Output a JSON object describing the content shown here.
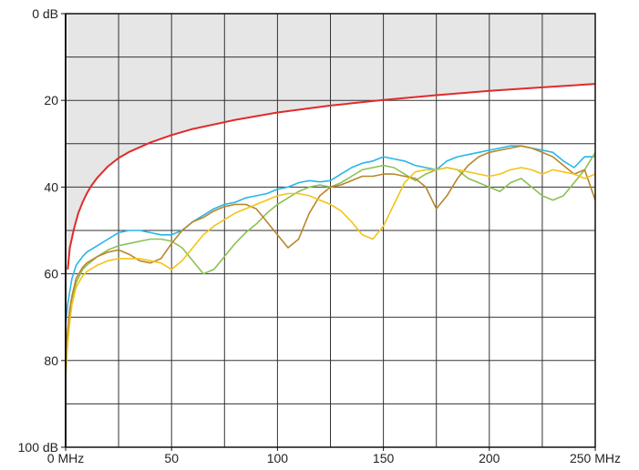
{
  "chart_data": {
    "type": "line",
    "title": "",
    "xlabel": "",
    "ylabel": "",
    "xlim": [
      0,
      250
    ],
    "ylim": [
      0,
      100
    ],
    "y_inverted": true,
    "grid": true,
    "legend": "none",
    "x_ticks": [
      {
        "value": 0,
        "label": "0 MHz"
      },
      {
        "value": 50,
        "label": "50"
      },
      {
        "value": 100,
        "label": "100"
      },
      {
        "value": 150,
        "label": "150"
      },
      {
        "value": 200,
        "label": "200"
      },
      {
        "value": 250,
        "label": "250 MHz"
      }
    ],
    "y_ticks": [
      {
        "value": 0,
        "label": "0 dB"
      },
      {
        "value": 20,
        "label": "20"
      },
      {
        "value": 40,
        "label": "40"
      },
      {
        "value": 60,
        "label": "60"
      },
      {
        "value": 80,
        "label": "80"
      },
      {
        "value": 100,
        "label": "100 dB"
      }
    ],
    "limit_region_color": "#e6e6e6",
    "series": [
      {
        "color": "#e02b2b",
        "role": "limit",
        "x": [
          1,
          2,
          4,
          6,
          8,
          10,
          12,
          15,
          20,
          25,
          30,
          40,
          50,
          60,
          80,
          100,
          125,
          150,
          175,
          200,
          225,
          250
        ],
        "y": [
          59,
          54,
          49.5,
          46,
          43.5,
          41.5,
          39.8,
          37.8,
          35.2,
          33.3,
          31.9,
          29.7,
          28,
          26.6,
          24.5,
          22.8,
          21.2,
          19.9,
          18.8,
          17.8,
          17,
          16.2
        ]
      },
      {
        "color": "#29b5e8",
        "x": [
          0,
          1,
          2,
          3,
          5,
          8,
          10,
          15,
          20,
          25,
          30,
          35,
          40,
          45,
          50,
          55,
          60,
          65,
          70,
          75,
          80,
          85,
          90,
          95,
          100,
          105,
          110,
          115,
          120,
          125,
          130,
          135,
          140,
          145,
          150,
          155,
          160,
          165,
          170,
          175,
          180,
          185,
          190,
          195,
          200,
          205,
          210,
          215,
          220,
          225,
          230,
          235,
          240,
          245,
          250
        ],
        "y": [
          72,
          67,
          64,
          61,
          58,
          56,
          55,
          53.5,
          52,
          50.5,
          50,
          50,
          50.5,
          51,
          51,
          50,
          48,
          46.5,
          45,
          44,
          43.5,
          42.5,
          42,
          41.5,
          40.5,
          40,
          39,
          38.5,
          38.8,
          38.5,
          37,
          35.5,
          34.5,
          34,
          33,
          33.5,
          34,
          35,
          35.5,
          36,
          34,
          33,
          32.5,
          32,
          31.5,
          31,
          30.5,
          30.5,
          31,
          31.5,
          32,
          34,
          35.5,
          33,
          33
        ]
      },
      {
        "color": "#8cc152",
        "x": [
          0,
          1,
          2,
          3,
          5,
          8,
          10,
          15,
          20,
          25,
          30,
          35,
          40,
          45,
          50,
          55,
          60,
          65,
          70,
          75,
          80,
          85,
          90,
          95,
          100,
          105,
          110,
          115,
          120,
          125,
          130,
          135,
          140,
          145,
          150,
          155,
          160,
          165,
          170,
          175,
          180,
          185,
          190,
          195,
          200,
          205,
          210,
          215,
          220,
          225,
          230,
          235,
          240,
          245,
          250
        ],
        "y": [
          82,
          74,
          69,
          66,
          62,
          59,
          58,
          56,
          54.5,
          53.5,
          53,
          52.5,
          52,
          52,
          52.5,
          54,
          57,
          60,
          59,
          56,
          53,
          50.5,
          48.5,
          46,
          44,
          42.5,
          41,
          40,
          39.5,
          40,
          39,
          37.5,
          36,
          35.5,
          35,
          35.5,
          37,
          38.5,
          37,
          36,
          35.5,
          36,
          38,
          39,
          40,
          41,
          39,
          38,
          40,
          42,
          43,
          42,
          39,
          36,
          32
        ]
      },
      {
        "color": "#b8862b",
        "x": [
          0,
          1,
          2,
          3,
          5,
          8,
          10,
          15,
          20,
          25,
          30,
          35,
          40,
          45,
          50,
          55,
          60,
          65,
          70,
          75,
          80,
          85,
          90,
          95,
          100,
          105,
          110,
          115,
          120,
          125,
          130,
          135,
          140,
          145,
          150,
          155,
          160,
          165,
          170,
          175,
          180,
          185,
          190,
          195,
          200,
          205,
          210,
          215,
          220,
          225,
          230,
          235,
          240,
          245,
          250
        ],
        "y": [
          80,
          73,
          68,
          65,
          61,
          58.5,
          57.5,
          56,
          55,
          54.5,
          55.5,
          57,
          57.5,
          56.5,
          53,
          50,
          48,
          47,
          45.5,
          44.5,
          44,
          44,
          45,
          48,
          51,
          54,
          52,
          46,
          42,
          40,
          39.5,
          38.5,
          37.5,
          37.5,
          37,
          37,
          37.5,
          38,
          40,
          45,
          42,
          38,
          35,
          33,
          32,
          31.5,
          31,
          30.5,
          31,
          32,
          33,
          35,
          37,
          36,
          43
        ]
      },
      {
        "color": "#f2c418",
        "x": [
          0,
          1,
          2,
          3,
          5,
          8,
          10,
          15,
          20,
          25,
          30,
          35,
          40,
          45,
          50,
          55,
          60,
          65,
          70,
          75,
          80,
          85,
          90,
          95,
          100,
          105,
          110,
          115,
          120,
          125,
          130,
          135,
          140,
          145,
          150,
          155,
          160,
          165,
          170,
          175,
          180,
          185,
          190,
          195,
          200,
          205,
          210,
          215,
          220,
          225,
          230,
          235,
          240,
          245,
          250
        ],
        "y": [
          84,
          76,
          71,
          67,
          63,
          60.5,
          59.5,
          58,
          57,
          56.5,
          56.5,
          56.5,
          57,
          57.5,
          59,
          57,
          54,
          51,
          49,
          47.5,
          46,
          45,
          44,
          43,
          42,
          41.5,
          41.5,
          42,
          43,
          44,
          45.5,
          48,
          51,
          52,
          49,
          44,
          39,
          36.5,
          36,
          36,
          35.5,
          36,
          36.5,
          37,
          37.5,
          37,
          36,
          35.5,
          36,
          37,
          36,
          36.5,
          37,
          38,
          37
        ]
      }
    ]
  }
}
